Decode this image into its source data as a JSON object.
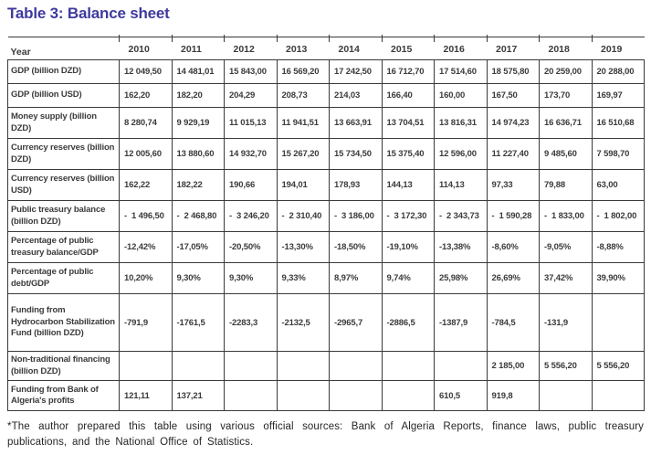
{
  "title": "Table 3: Balance sheet",
  "colors": {
    "title_accent": "#3f3a9d",
    "table_border": "#3a3a3a",
    "body_text": "#3b3b3b"
  },
  "table": {
    "header": [
      "Year",
      "2010",
      "2011",
      "2012",
      "2013",
      "2014",
      "2015",
      "2016",
      "2017",
      "2018",
      "2019"
    ],
    "rows": [
      {
        "label": "GDP (billion DZD)",
        "values": [
          "12 049,50",
          "14 481,01",
          "15 843,00",
          "16 569,20",
          "17 242,50",
          "16 712,70",
          "17 514,60",
          "18 575,80",
          "20 259,00",
          "20 288,00"
        ]
      },
      {
        "label": "GDP (billion USD)",
        "values": [
          "162,20",
          "182,20",
          "204,29",
          "208,73",
          "214,03",
          "166,40",
          "160,00",
          "167,50",
          "173,70",
          "169,97"
        ]
      },
      {
        "label": "Money supply (billion DZD)",
        "values": [
          "8 280,74",
          "9 929,19",
          "11 015,13",
          "11 941,51",
          "13 663,91",
          "13 704,51",
          "13 816,31",
          "14 974,23",
          "16 636,71",
          "16 510,68"
        ]
      },
      {
        "label": "Currency reserves (billion DZD)",
        "values": [
          "12 005,60",
          "13 880,60",
          "14 932,70",
          "15 267,20",
          "15 734,50",
          "15 375,40",
          "12 596,00",
          "11 227,40",
          "9 485,60",
          "7 598,70"
        ]
      },
      {
        "label": "Currency reserves (billion USD)",
        "values": [
          "162,22",
          "182,22",
          "190,66",
          "194,01",
          "178,93",
          "144,13",
          "114,13",
          "97,33",
          "79,88",
          "63,00"
        ]
      },
      {
        "label": "Public treasury balance (billion DZD)",
        "values": [
          "-  1 496,50",
          "-  2 468,80",
          "-  3 246,20",
          "-  2 310,40",
          "-  3 186,00",
          "-  3 172,30",
          "-  2 343,73",
          "-  1 590,28",
          "-  1 833,00",
          "-  1 802,00"
        ]
      },
      {
        "label": "Percentage of public treasury balance/GDP",
        "values": [
          "-12,42%",
          "-17,05%",
          "-20,50%",
          "-13,30%",
          "-18,50%",
          "-19,10%",
          "-13,38%",
          "-8,60%",
          "-9,05%",
          "-8,88%"
        ]
      },
      {
        "label": "Percentage of public debt/GDP",
        "values": [
          "10,20%",
          "9,30%",
          "9,30%",
          "9,33%",
          "8,97%",
          "9,74%",
          "25,98%",
          "26,69%",
          "37,42%",
          "39,90%"
        ]
      },
      {
        "label": "Funding from Hydrocarbon Stabilization Fund (billion DZD)",
        "values": [
          "-791,9",
          "-1761,5",
          "-2283,3",
          "-2132,5",
          "-2965,7",
          "-2886,5",
          "-1387,9",
          "-784,5",
          "-131,9",
          ""
        ]
      },
      {
        "label": "Non-traditional financing (billion DZD)",
        "values": [
          "",
          "",
          "",
          "",
          "",
          "",
          "",
          "2 185,00",
          "5 556,20",
          "5 556,20"
        ]
      },
      {
        "label": "Funding from Bank of Algeria's profits",
        "values": [
          "121,11",
          "137,21",
          "",
          "",
          "",
          "",
          "610,5",
          "919,8",
          "",
          ""
        ]
      }
    ]
  },
  "footnote": "*The author prepared this table using various official sources: Bank of Algeria Reports, finance laws, public treasury publications, and the National Office of Statistics."
}
